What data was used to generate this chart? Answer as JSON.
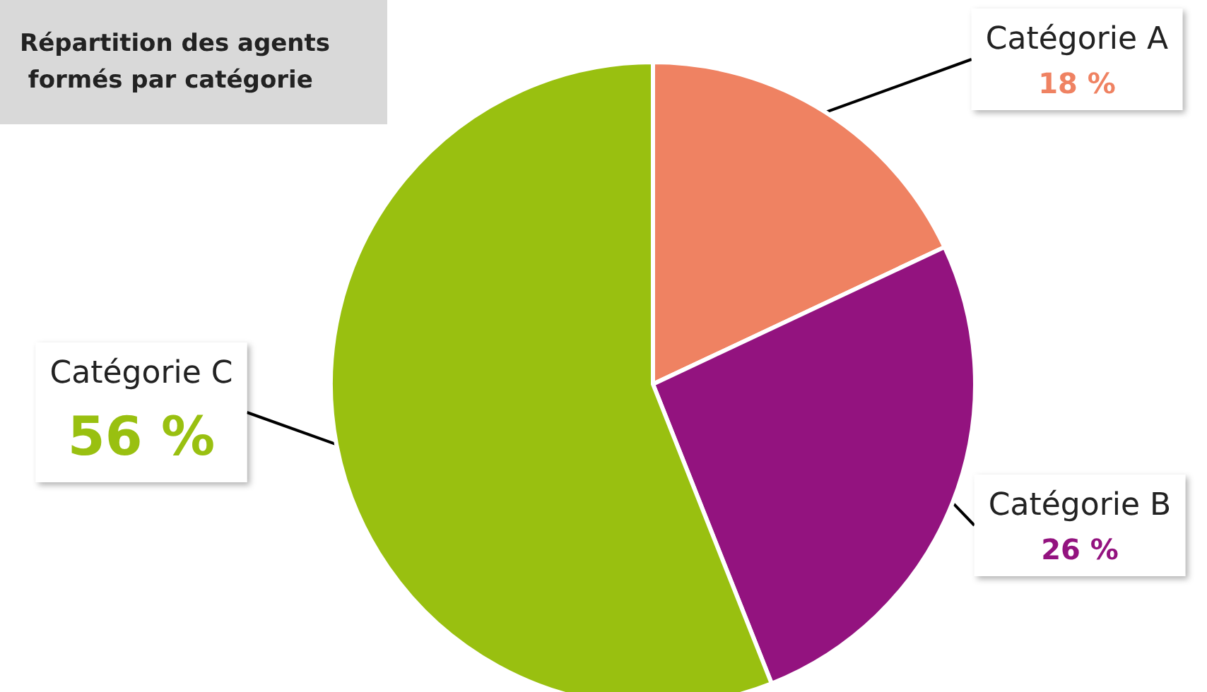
{
  "chart_data": {
    "type": "pie",
    "title": "Répartition des agents formés par catégorie",
    "categories": [
      "Catégorie A",
      "Catégorie B",
      "Catégorie C"
    ],
    "values": [
      18,
      26,
      56
    ],
    "value_labels": [
      "18 %",
      "26 %",
      "56 %"
    ],
    "colors": [
      "#ef8262",
      "#93137f",
      "#99c010"
    ],
    "legend": false
  }
}
